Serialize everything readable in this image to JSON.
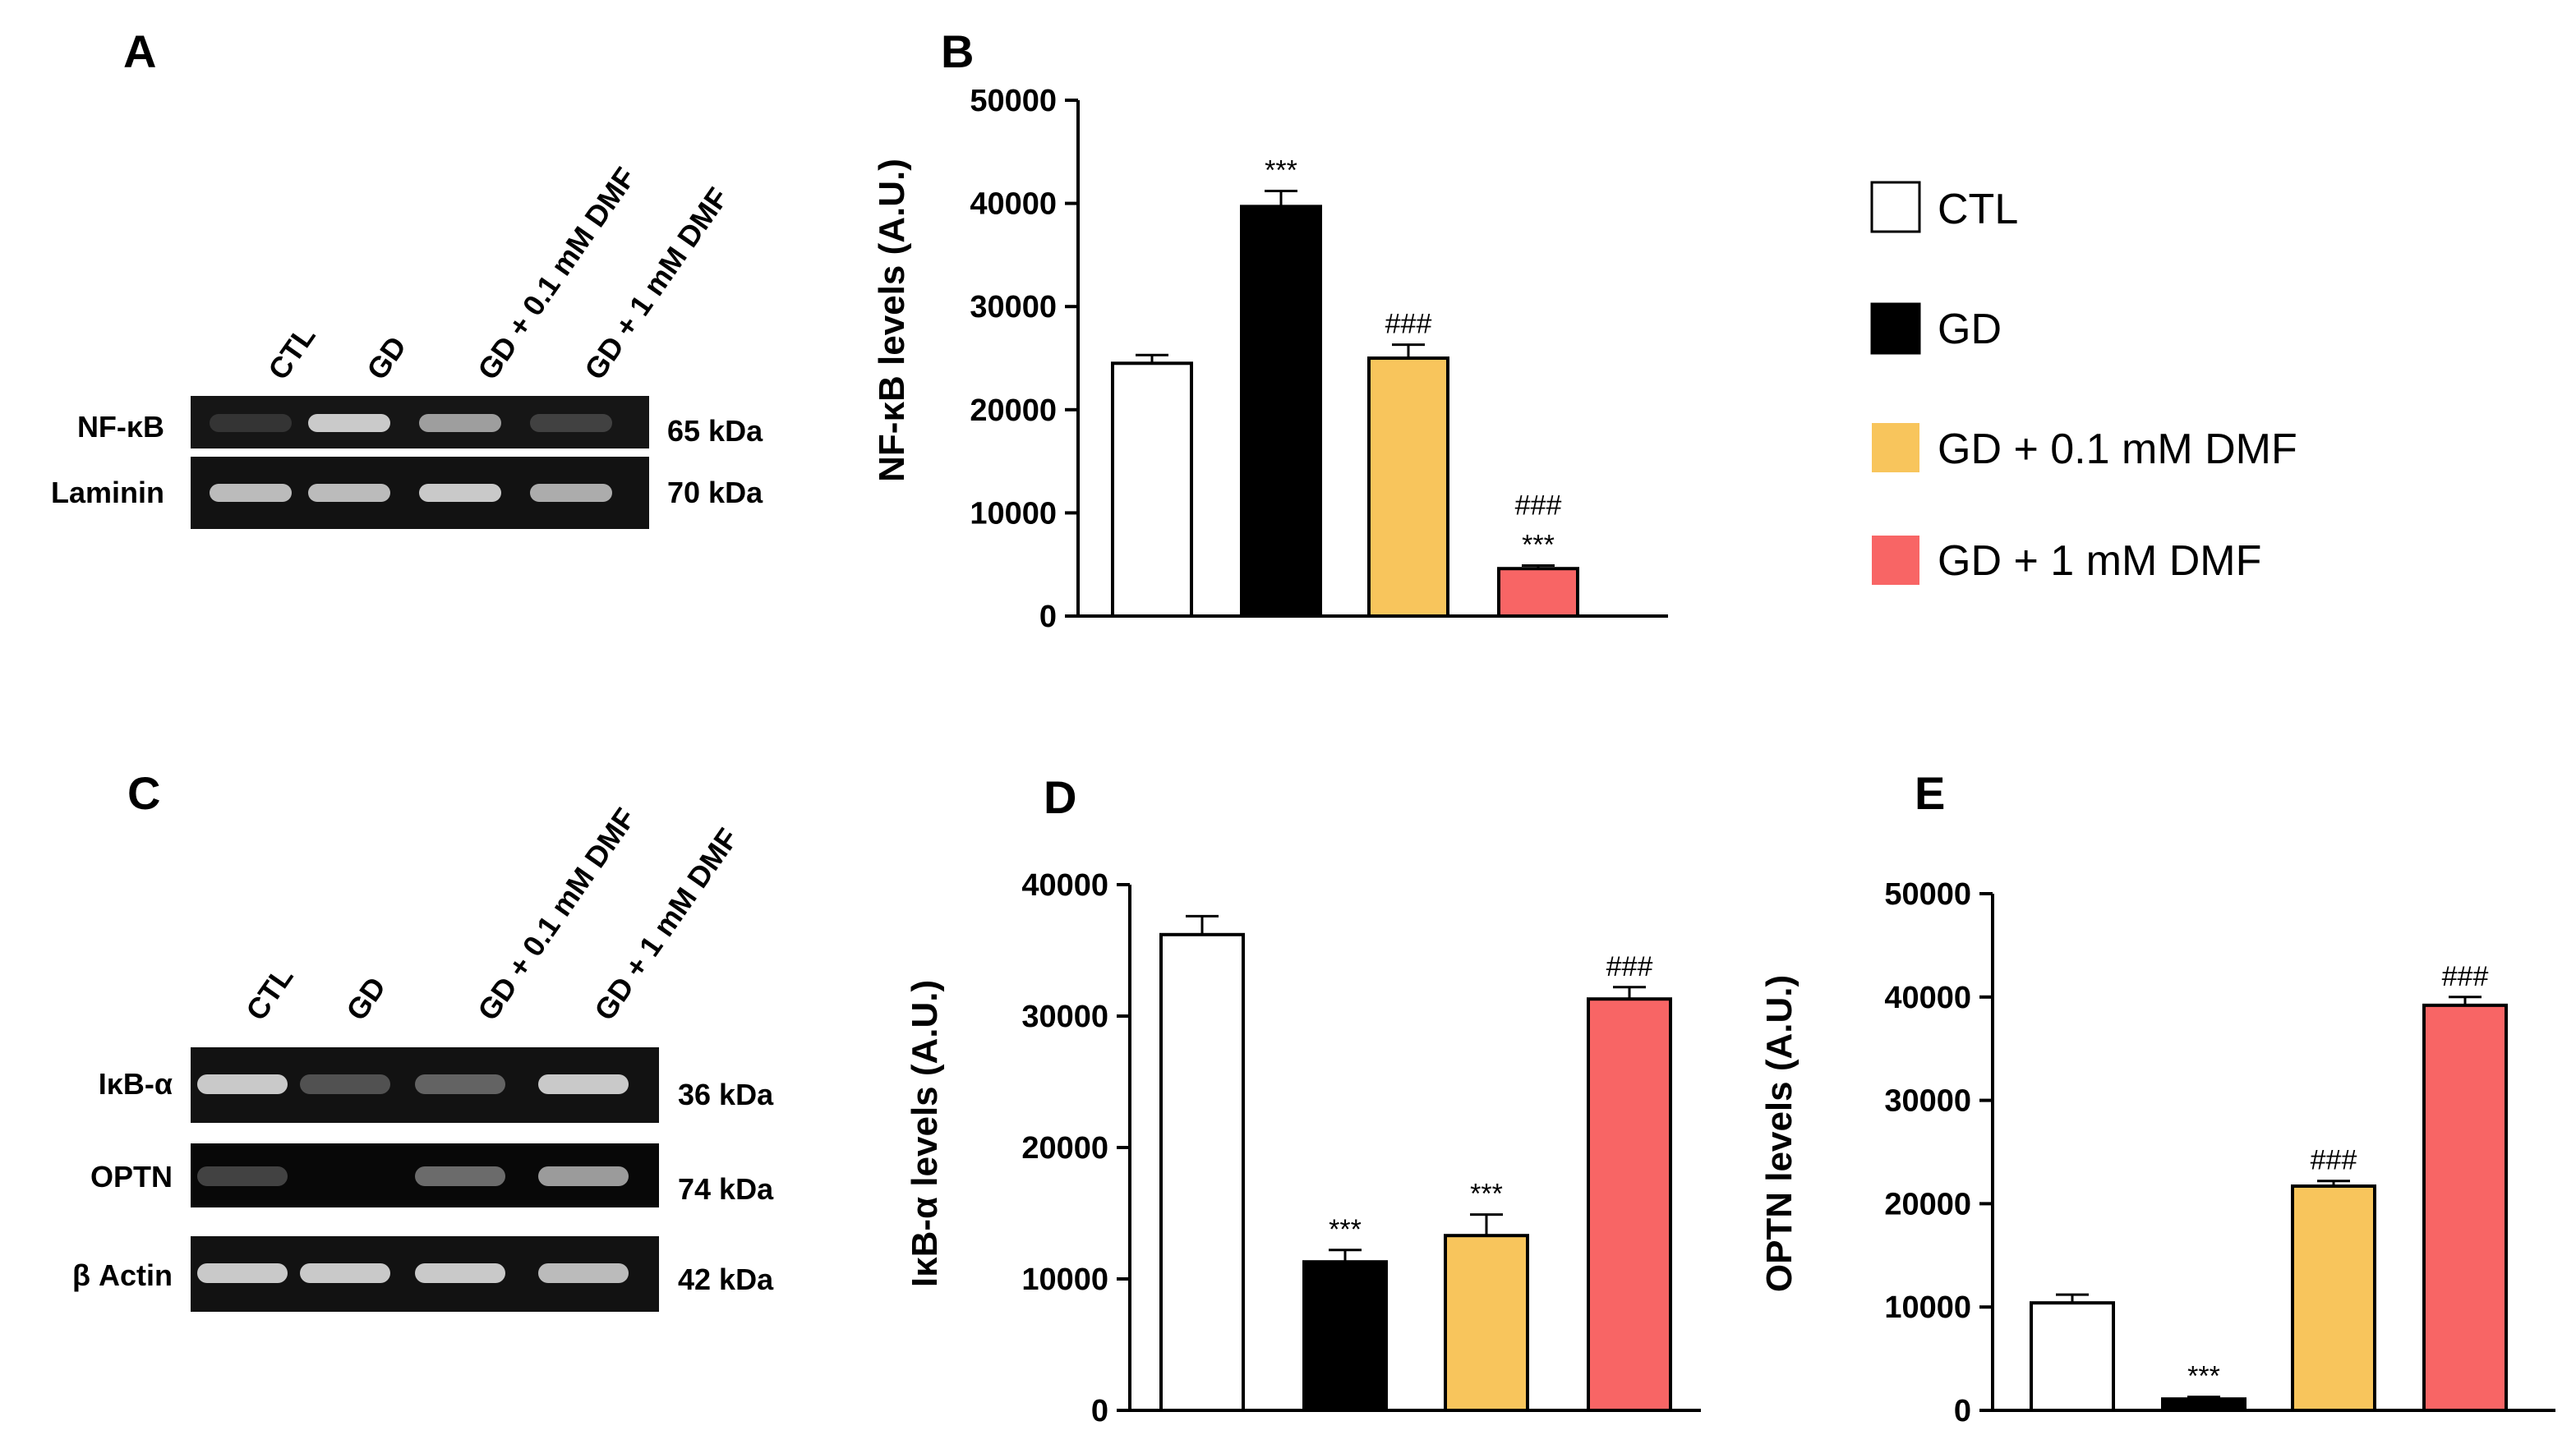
{
  "colors": {
    "CTL": "#ffffff",
    "GD": "#000000",
    "GD01": "#f8c55c",
    "GD1": "#f86565"
  },
  "legend": [
    {
      "label": "CTL",
      "color": "#ffffff"
    },
    {
      "label": "GD",
      "color": "#000000"
    },
    {
      "label": "GD + 0.1 mM DMF",
      "color": "#f8c55c"
    },
    {
      "label": "GD + 1 mM DMF",
      "color": "#f86565"
    }
  ],
  "blots": [
    {
      "panel": "A",
      "lanes": [
        "CTL",
        "GD",
        "GD + 0.1 mM DMF",
        "GD + 1 mM DMF"
      ],
      "rows": [
        {
          "label": "NF-κB",
          "kda": "65 kDa",
          "intensity": [
            0.15,
            0.85,
            0.7,
            0.25
          ]
        },
        {
          "label": "Laminin",
          "kda": "70 kDa",
          "intensity": [
            0.8,
            0.8,
            0.85,
            0.75
          ]
        }
      ]
    },
    {
      "panel": "C",
      "lanes": [
        "CTL",
        "GD",
        "GD + 0.1 mM DMF",
        "GD + 1 mM DMF"
      ],
      "rows": [
        {
          "label": "IκB-α",
          "kda": "36 kDa",
          "intensity": [
            0.85,
            0.35,
            0.45,
            0.85
          ]
        },
        {
          "label": "OPTN",
          "kda": "74 kDa",
          "intensity": [
            0.3,
            0.0,
            0.5,
            0.7
          ]
        },
        {
          "label": "β Actin",
          "kda": "42 kDa",
          "intensity": [
            0.85,
            0.85,
            0.85,
            0.8
          ]
        }
      ]
    }
  ],
  "chart_data": [
    {
      "panel": "B",
      "type": "bar",
      "categories": [
        "CTL",
        "GD",
        "GD + 0.1 mM DMF",
        "GD + 1 mM DMF"
      ],
      "values": [
        24500,
        39700,
        25000,
        4600
      ],
      "errors": [
        800,
        1500,
        1300,
        300
      ],
      "annotations": [
        [
          ""
        ],
        [
          "***"
        ],
        [
          "###"
        ],
        [
          "###",
          "***"
        ]
      ],
      "ylabel": "NF-κB levels (A.U.)",
      "ylim": [
        0,
        50000
      ],
      "yticks": [
        0,
        10000,
        20000,
        30000,
        40000,
        50000
      ]
    },
    {
      "panel": "D",
      "type": "bar",
      "categories": [
        "CTL",
        "GD",
        "GD + 0.1 mM DMF",
        "GD + 1 mM DMF"
      ],
      "values": [
        36200,
        11300,
        13300,
        31300
      ],
      "errors": [
        1400,
        900,
        1600,
        900
      ],
      "annotations": [
        [
          ""
        ],
        [
          "***"
        ],
        [
          "***"
        ],
        [
          "###"
        ]
      ],
      "ylabel": "IκB-α levels (A.U.)",
      "ylim": [
        0,
        40000
      ],
      "yticks": [
        0,
        10000,
        20000,
        30000,
        40000
      ]
    },
    {
      "panel": "E",
      "type": "bar",
      "categories": [
        "CTL",
        "GD",
        "GD + 0.1 mM DMF",
        "GD + 1 mM DMF"
      ],
      "values": [
        10400,
        1100,
        21700,
        39200
      ],
      "errors": [
        800,
        200,
        500,
        800
      ],
      "annotations": [
        [
          ""
        ],
        [
          "***"
        ],
        [
          "###"
        ],
        [
          "###"
        ]
      ],
      "ylabel": "OPTN levels (A.U.)",
      "ylim": [
        0,
        50000
      ],
      "yticks": [
        0,
        10000,
        20000,
        30000,
        40000,
        50000
      ]
    }
  ]
}
